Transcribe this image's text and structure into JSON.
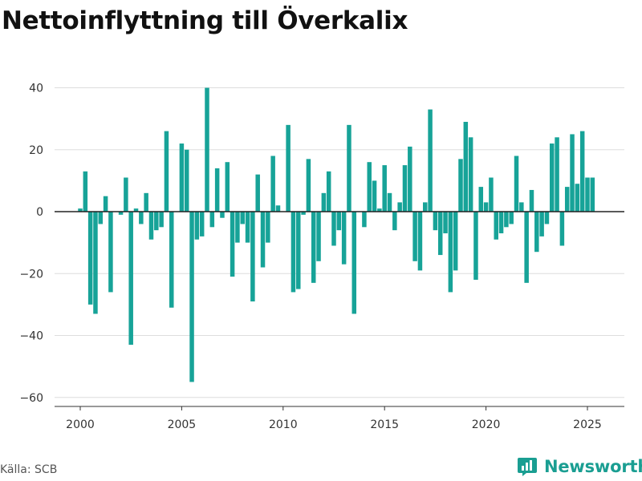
{
  "header": {
    "title": "Nettoinflyttning till Överkalix"
  },
  "footer": {
    "source": "Källa: SCB",
    "brand": "Newsworthy"
  },
  "colors": {
    "bar": "#17a398",
    "grid": "#dddddd",
    "zero_line": "#222222",
    "brand": "#1a9e92"
  },
  "chart_data": {
    "type": "bar",
    "title": "Nettoinflyttning till Överkalix",
    "xlabel": "",
    "ylabel": "",
    "ylim": [
      -62,
      42
    ],
    "xlim": [
      1999.25,
      2026.75
    ],
    "yticks": [
      40,
      20,
      0,
      -20,
      -40,
      -60
    ],
    "xticks": [
      2000,
      2005,
      2010,
      2015,
      2020,
      2025
    ],
    "grid": true,
    "x": [
      2000.0,
      2000.25,
      2000.5,
      2000.75,
      2001.0,
      2001.25,
      2001.5,
      2001.75,
      2002.0,
      2002.25,
      2002.5,
      2002.75,
      2003.0,
      2003.25,
      2003.5,
      2003.75,
      2004.0,
      2004.25,
      2004.5,
      2004.75,
      2005.0,
      2005.25,
      2005.5,
      2005.75,
      2006.0,
      2006.25,
      2006.5,
      2006.75,
      2007.0,
      2007.25,
      2007.5,
      2007.75,
      2008.0,
      2008.25,
      2008.5,
      2008.75,
      2009.0,
      2009.25,
      2009.5,
      2009.75,
      2010.0,
      2010.25,
      2010.5,
      2010.75,
      2011.0,
      2011.25,
      2011.5,
      2011.75,
      2012.0,
      2012.25,
      2012.5,
      2012.75,
      2013.0,
      2013.25,
      2013.5,
      2013.75,
      2014.0,
      2014.25,
      2014.5,
      2014.75,
      2015.0,
      2015.25,
      2015.5,
      2015.75,
      2016.0,
      2016.25,
      2016.5,
      2016.75,
      2017.0,
      2017.25,
      2017.5,
      2017.75,
      2018.0,
      2018.25,
      2018.5,
      2018.75,
      2019.0,
      2019.25,
      2019.5,
      2019.75,
      2020.0,
      2020.25,
      2020.5,
      2020.75,
      2021.0,
      2021.25,
      2021.5,
      2021.75,
      2022.0,
      2022.25,
      2022.5,
      2022.75,
      2023.0,
      2023.25,
      2023.5,
      2023.75,
      2024.0,
      2024.25,
      2024.5,
      2024.75,
      2025.0,
      2025.25
    ],
    "values": [
      1,
      13,
      -30,
      -33,
      -4,
      5,
      -26,
      0,
      -1,
      11,
      -43,
      1,
      -4,
      6,
      -9,
      -6,
      -5,
      26,
      -31,
      0,
      22,
      20,
      -55,
      -9,
      -8,
      40,
      -5,
      14,
      -2,
      16,
      -21,
      -10,
      -4,
      -10,
      -29,
      12,
      -18,
      -10,
      18,
      2,
      0,
      28,
      -26,
      -25,
      -1,
      17,
      -23,
      -16,
      6,
      13,
      -11,
      -6,
      -17,
      28,
      -33,
      0,
      -5,
      16,
      10,
      1,
      15,
      6,
      -6,
      3,
      15,
      21,
      -16,
      -19,
      3,
      33,
      -6,
      -14,
      -7,
      -26,
      -19,
      17,
      29,
      24,
      -22,
      8,
      3,
      11,
      -9,
      -7,
      -5,
      -4,
      18,
      3,
      -23,
      7,
      -13,
      -8,
      -4,
      22,
      24,
      -11,
      8,
      25,
      9,
      26,
      11,
      11
    ]
  }
}
